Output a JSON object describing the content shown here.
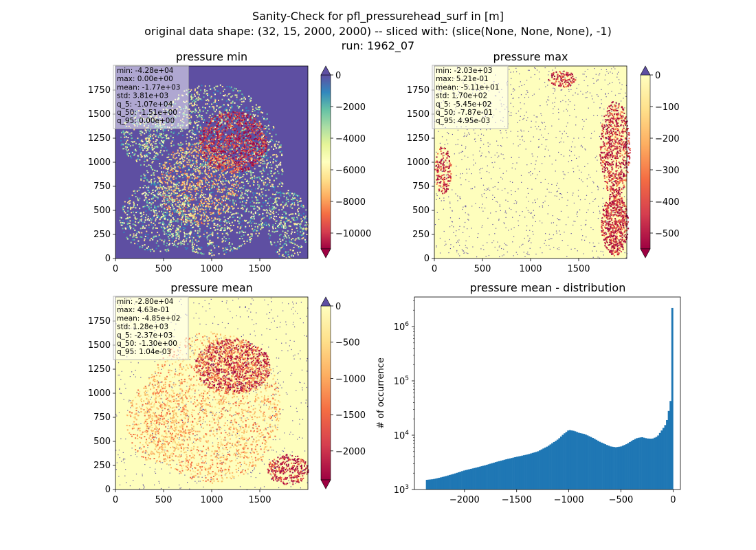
{
  "suptitle": {
    "line1": "Sanity-Check for pfl_pressurehead_surf in [m]",
    "line2": "original data shape: (32, 15, 2000, 2000) -- sliced with: (slice(None, None, None), -1)",
    "line3": "run: 1962_07"
  },
  "colors": {
    "map_blue": "#5e4fa2",
    "map_yellow": "#fefebd",
    "map_red": "#9e0142",
    "hist_bar": "#1f77b4"
  },
  "chart_data": [
    {
      "type": "heatmap",
      "title": "pressure min",
      "colormap": "Spectral",
      "background_class": "blue",
      "pattern": "clustered",
      "xlim": [
        0,
        2000
      ],
      "ylim": [
        0,
        2000
      ],
      "xticks": [
        "0",
        "500",
        "1000",
        "1500"
      ],
      "yticks": [
        "0",
        "250",
        "500",
        "750",
        "1000",
        "1250",
        "1500",
        "1750"
      ],
      "colorbar": {
        "min": -11000,
        "max": 0,
        "ticks": [
          "0",
          "−2000",
          "−4000",
          "−6000",
          "−8000",
          "−10000"
        ],
        "extend": "both"
      },
      "stats": [
        "min: -4.28e+04",
        "max: 0.00e+00",
        "mean: -1.77e+03",
        "std: 3.81e+03",
        "q_5: -1.07e+04",
        "q_50: -1.51e+00",
        "q_95: 0.00e+00"
      ]
    },
    {
      "type": "heatmap",
      "title": "pressure max",
      "colormap": "Spectral",
      "background_class": "yellow",
      "pattern": "edges",
      "xlim": [
        0,
        2000
      ],
      "ylim": [
        0,
        2000
      ],
      "xticks": [
        "0",
        "500",
        "1000",
        "1500"
      ],
      "yticks": [
        "0",
        "250",
        "500",
        "750",
        "1000",
        "1250",
        "1500",
        "1750"
      ],
      "colorbar": {
        "min": -550,
        "max": 0,
        "ticks": [
          "0",
          "−100",
          "−200",
          "−300",
          "−400",
          "−500"
        ],
        "extend": "both"
      },
      "stats": [
        "min: -2.03e+03",
        "max: 5.21e-01",
        "mean: -5.11e+01",
        "std: 1.70e+02",
        "q_5: -5.45e+02",
        "q_50: -7.87e-01",
        "q_95: 4.95e-03"
      ]
    },
    {
      "type": "heatmap",
      "title": "pressure mean",
      "colormap": "Spectral",
      "background_class": "yellow",
      "pattern": "clustered",
      "xlim": [
        0,
        2000
      ],
      "ylim": [
        0,
        2000
      ],
      "xticks": [
        "0",
        "500",
        "1000",
        "1500"
      ],
      "yticks": [
        "0",
        "250",
        "500",
        "750",
        "1000",
        "1250",
        "1500",
        "1750"
      ],
      "colorbar": {
        "min": -2400,
        "max": 0,
        "ticks": [
          "0",
          "−500",
          "−1000",
          "−1500",
          "−2000"
        ],
        "extend": "both"
      },
      "stats": [
        "min: -2.80e+04",
        "max: 4.63e-01",
        "mean: -4.85e+02",
        "std: 1.28e+03",
        "q_5: -2.37e+03",
        "q_50: -1.30e+00",
        "q_95: 1.04e-03"
      ]
    },
    {
      "type": "bar",
      "title": "pressure mean - distribution",
      "ylabel": "# of occurrence",
      "xlabel": "",
      "yscale": "log",
      "xlim": [
        -2480,
        70
      ],
      "ylim": [
        1000,
        3500000
      ],
      "xticks": [
        -2000,
        -1500,
        -1000,
        -500,
        0
      ],
      "xtick_labels": [
        "−2000",
        "−1500",
        "−1000",
        "−500",
        "0"
      ],
      "yticks": [
        1000,
        10000,
        100000,
        1000000
      ],
      "ytick_labels": [
        "10",
        "10",
        "10",
        "10"
      ],
      "ytick_exponents": [
        "3",
        "4",
        "5",
        "6"
      ],
      "bins": {
        "start": -2370,
        "end": 0,
        "count": 140
      },
      "profile": [
        [
          -2370,
          1500
        ],
        [
          -2300,
          1550
        ],
        [
          -2200,
          1720
        ],
        [
          -2100,
          1950
        ],
        [
          -2000,
          2250
        ],
        [
          -1900,
          2500
        ],
        [
          -1800,
          2800
        ],
        [
          -1700,
          3200
        ],
        [
          -1600,
          3600
        ],
        [
          -1500,
          4000
        ],
        [
          -1400,
          4400
        ],
        [
          -1300,
          5000
        ],
        [
          -1200,
          6300
        ],
        [
          -1100,
          8500
        ],
        [
          -1050,
          10500
        ],
        [
          -1000,
          12500
        ],
        [
          -950,
          12000
        ],
        [
          -900,
          11000
        ],
        [
          -850,
          10500
        ],
        [
          -800,
          9500
        ],
        [
          -750,
          8500
        ],
        [
          -700,
          7500
        ],
        [
          -650,
          6800
        ],
        [
          -600,
          6200
        ],
        [
          -550,
          6000
        ],
        [
          -500,
          6200
        ],
        [
          -450,
          6800
        ],
        [
          -400,
          7800
        ],
        [
          -350,
          8800
        ],
        [
          -300,
          9200
        ],
        [
          -250,
          8700
        ],
        [
          -200,
          8600
        ],
        [
          -150,
          9500
        ],
        [
          -100,
          13000
        ],
        [
          -70,
          16000
        ],
        [
          -50,
          22000
        ],
        [
          -35,
          35000
        ],
        [
          -25,
          43000
        ],
        [
          -15,
          33000
        ],
        [
          -5,
          2200000
        ]
      ]
    }
  ]
}
